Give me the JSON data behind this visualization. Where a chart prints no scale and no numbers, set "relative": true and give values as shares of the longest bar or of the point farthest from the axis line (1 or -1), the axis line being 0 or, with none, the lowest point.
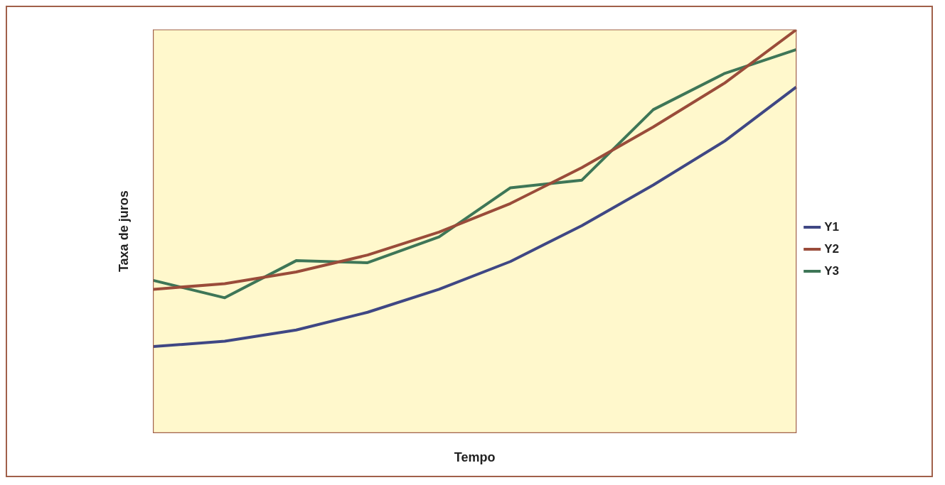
{
  "chart_data": {
    "type": "line",
    "xlabel": "Tempo",
    "ylabel": "Taxa de juros",
    "relative": true,
    "legend": "right",
    "marker": "none",
    "line_style": "solid",
    "categories": [
      null,
      null,
      null,
      null,
      null,
      null,
      null,
      null,
      null,
      null
    ],
    "series": [
      {
        "name": "Y1",
        "color": "#3f4784",
        "values": [
          0.214,
          0.227,
          0.255,
          0.299,
          0.356,
          0.425,
          0.514,
          0.615,
          0.724,
          0.858
        ]
      },
      {
        "name": "Y2",
        "color": "#9a4c3a",
        "values": [
          0.356,
          0.37,
          0.399,
          0.441,
          0.498,
          0.569,
          0.658,
          0.759,
          0.868,
          1
        ]
      },
      {
        "name": "Y3",
        "color": "#3e7657",
        "values": [
          0.378,
          0.335,
          0.427,
          0.422,
          0.486,
          0.608,
          0.627,
          0.802,
          0.892,
          0.951
        ]
      }
    ]
  }
}
